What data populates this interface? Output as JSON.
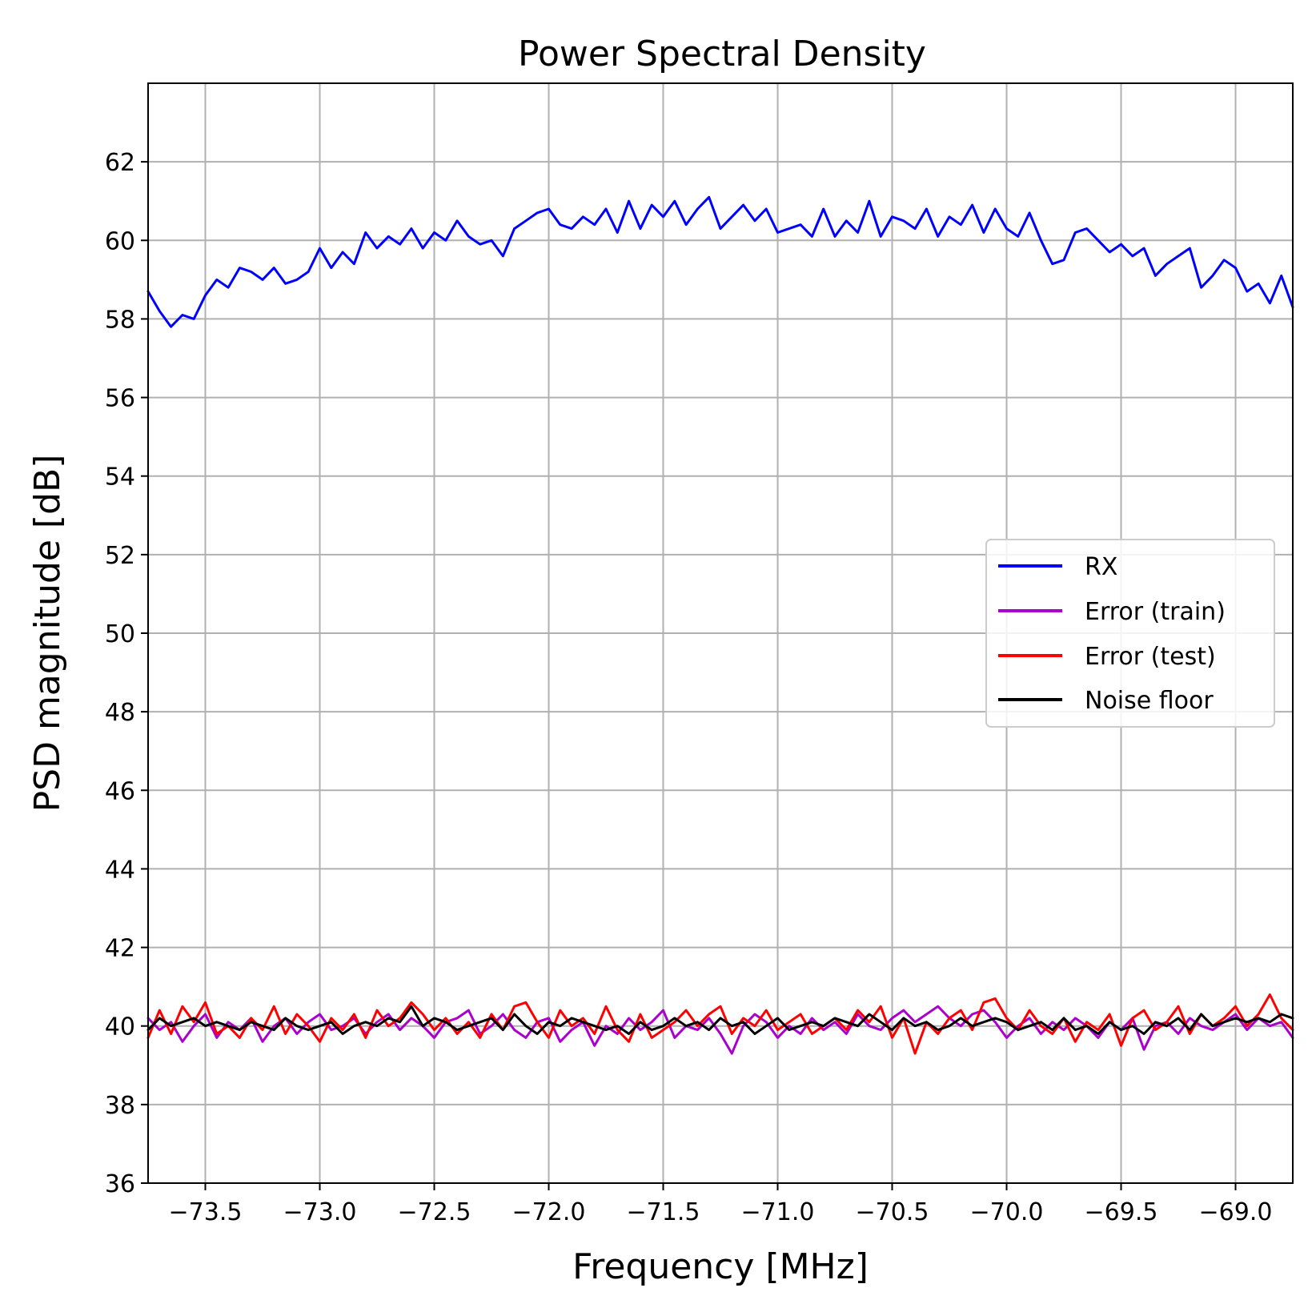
{
  "chart_data": {
    "type": "line",
    "title": "Power Spectral Density",
    "xlabel": "Frequency [MHz]",
    "ylabel": "PSD magnitude [dB]",
    "xlim": [
      -73.75,
      -68.75
    ],
    "ylim": [
      36,
      64
    ],
    "xticks": [
      -73.5,
      -73.0,
      -72.5,
      -72.0,
      -71.5,
      -71.0,
      -70.5,
      -70.0,
      -69.5,
      -69.0
    ],
    "xtick_labels": [
      "−73.5",
      "−73.0",
      "−72.5",
      "−72.0",
      "−71.5",
      "−71.0",
      "−70.5",
      "−70.0",
      "−69.5",
      "−69.0"
    ],
    "yticks": [
      36,
      38,
      40,
      42,
      44,
      46,
      48,
      50,
      52,
      54,
      56,
      58,
      60,
      62
    ],
    "ytick_labels": [
      "36",
      "38",
      "40",
      "42",
      "44",
      "46",
      "48",
      "50",
      "52",
      "54",
      "56",
      "58",
      "60",
      "62"
    ],
    "grid": true,
    "legend_position": "center-right",
    "series": [
      {
        "name": "RX",
        "color": "#0000ff",
        "x": [
          -73.75,
          -73.7,
          -73.65,
          -73.6,
          -73.55,
          -73.5,
          -73.45,
          -73.4,
          -73.35,
          -73.3,
          -73.25,
          -73.2,
          -73.15,
          -73.1,
          -73.05,
          -73.0,
          -72.95,
          -72.9,
          -72.85,
          -72.8,
          -72.75,
          -72.7,
          -72.65,
          -72.6,
          -72.55,
          -72.5,
          -72.45,
          -72.4,
          -72.35,
          -72.3,
          -72.25,
          -72.2,
          -72.15,
          -72.1,
          -72.05,
          -72.0,
          -71.95,
          -71.9,
          -71.85,
          -71.8,
          -71.75,
          -71.7,
          -71.65,
          -71.6,
          -71.55,
          -71.5,
          -71.45,
          -71.4,
          -71.35,
          -71.3,
          -71.25,
          -71.2,
          -71.15,
          -71.1,
          -71.05,
          -71.0,
          -70.95,
          -70.9,
          -70.85,
          -70.8,
          -70.75,
          -70.7,
          -70.65,
          -70.6,
          -70.55,
          -70.5,
          -70.45,
          -70.4,
          -70.35,
          -70.3,
          -70.25,
          -70.2,
          -70.15,
          -70.1,
          -70.05,
          -70.0,
          -69.95,
          -69.9,
          -69.85,
          -69.8,
          -69.75,
          -69.7,
          -69.65,
          -69.6,
          -69.55,
          -69.5,
          -69.45,
          -69.4,
          -69.35,
          -69.3,
          -69.25,
          -69.2,
          -69.15,
          -69.1,
          -69.05,
          -69.0,
          -68.95,
          -68.9,
          -68.85,
          -68.8,
          -68.75
        ],
        "y": [
          58.7,
          58.2,
          57.8,
          58.1,
          58.0,
          58.6,
          59.0,
          58.8,
          59.3,
          59.2,
          59.0,
          59.3,
          58.9,
          59.0,
          59.2,
          59.8,
          59.3,
          59.7,
          59.4,
          60.2,
          59.8,
          60.1,
          59.9,
          60.3,
          59.8,
          60.2,
          60.0,
          60.5,
          60.1,
          59.9,
          60.0,
          59.6,
          60.3,
          60.5,
          60.7,
          60.8,
          60.4,
          60.3,
          60.6,
          60.4,
          60.8,
          60.2,
          61.0,
          60.3,
          60.9,
          60.6,
          61.0,
          60.4,
          60.8,
          61.1,
          60.3,
          60.6,
          60.9,
          60.5,
          60.8,
          60.2,
          60.3,
          60.4,
          60.1,
          60.8,
          60.1,
          60.5,
          60.2,
          61.0,
          60.1,
          60.6,
          60.5,
          60.3,
          60.8,
          60.1,
          60.6,
          60.4,
          60.9,
          60.2,
          60.8,
          60.3,
          60.1,
          60.7,
          60.0,
          59.4,
          59.5,
          60.2,
          60.3,
          60.0,
          59.7,
          59.9,
          59.6,
          59.8,
          59.1,
          59.4,
          59.6,
          59.8,
          58.8,
          59.1,
          59.5,
          59.3,
          58.7,
          58.9,
          58.4,
          59.1,
          58.3
        ]
      },
      {
        "name": "Error (train)",
        "color": "#aa00cc",
        "x": [
          -73.75,
          -73.7,
          -73.65,
          -73.6,
          -73.55,
          -73.5,
          -73.45,
          -73.4,
          -73.35,
          -73.3,
          -73.25,
          -73.2,
          -73.15,
          -73.1,
          -73.05,
          -73.0,
          -72.95,
          -72.9,
          -72.85,
          -72.8,
          -72.75,
          -72.7,
          -72.65,
          -72.6,
          -72.55,
          -72.5,
          -72.45,
          -72.4,
          -72.35,
          -72.3,
          -72.25,
          -72.2,
          -72.15,
          -72.1,
          -72.05,
          -72.0,
          -71.95,
          -71.9,
          -71.85,
          -71.8,
          -71.75,
          -71.7,
          -71.65,
          -71.6,
          -71.55,
          -71.5,
          -71.45,
          -71.4,
          -71.35,
          -71.3,
          -71.25,
          -71.2,
          -71.15,
          -71.1,
          -71.05,
          -71.0,
          -70.95,
          -70.9,
          -70.85,
          -70.8,
          -70.75,
          -70.7,
          -70.65,
          -70.6,
          -70.55,
          -70.5,
          -70.45,
          -70.4,
          -70.35,
          -70.3,
          -70.25,
          -70.2,
          -70.15,
          -70.1,
          -70.05,
          -70.0,
          -69.95,
          -69.9,
          -69.85,
          -69.8,
          -69.75,
          -69.7,
          -69.65,
          -69.6,
          -69.55,
          -69.5,
          -69.45,
          -69.4,
          -69.35,
          -69.3,
          -69.25,
          -69.2,
          -69.15,
          -69.1,
          -69.05,
          -69.0,
          -68.95,
          -68.9,
          -68.85,
          -68.8,
          -68.75
        ],
        "y": [
          40.2,
          39.9,
          40.1,
          39.6,
          40.0,
          40.3,
          39.7,
          40.1,
          39.9,
          40.2,
          39.6,
          40.0,
          40.2,
          39.8,
          40.1,
          40.3,
          39.9,
          40.0,
          40.2,
          39.8,
          40.1,
          40.3,
          39.9,
          40.2,
          40.0,
          39.7,
          40.1,
          40.2,
          40.4,
          39.8,
          40.0,
          40.3,
          39.9,
          39.7,
          40.1,
          40.2,
          39.6,
          39.9,
          40.1,
          39.5,
          40.0,
          39.8,
          40.2,
          39.9,
          40.1,
          40.4,
          39.7,
          40.0,
          39.9,
          40.2,
          39.8,
          39.3,
          40.0,
          40.3,
          40.1,
          39.7,
          40.0,
          39.8,
          40.2,
          39.9,
          40.1,
          39.8,
          40.3,
          40.0,
          39.9,
          40.2,
          40.4,
          40.1,
          40.3,
          40.5,
          40.2,
          40.0,
          40.3,
          40.4,
          40.1,
          39.7,
          40.0,
          40.2,
          39.8,
          40.1,
          39.9,
          40.2,
          40.0,
          39.7,
          40.1,
          39.9,
          40.2,
          39.4,
          40.0,
          40.1,
          39.8,
          40.2,
          40.0,
          39.9,
          40.1,
          40.3,
          39.9,
          40.2,
          40.0,
          40.1,
          39.7
        ]
      },
      {
        "name": "Error (test)",
        "color": "#ff0000",
        "x": [
          -73.75,
          -73.7,
          -73.65,
          -73.6,
          -73.55,
          -73.5,
          -73.45,
          -73.4,
          -73.35,
          -73.3,
          -73.25,
          -73.2,
          -73.15,
          -73.1,
          -73.05,
          -73.0,
          -72.95,
          -72.9,
          -72.85,
          -72.8,
          -72.75,
          -72.7,
          -72.65,
          -72.6,
          -72.55,
          -72.5,
          -72.45,
          -72.4,
          -72.35,
          -72.3,
          -72.25,
          -72.2,
          -72.15,
          -72.1,
          -72.05,
          -72.0,
          -71.95,
          -71.9,
          -71.85,
          -71.8,
          -71.75,
          -71.7,
          -71.65,
          -71.6,
          -71.55,
          -71.5,
          -71.45,
          -71.4,
          -71.35,
          -71.3,
          -71.25,
          -71.2,
          -71.15,
          -71.1,
          -71.05,
          -71.0,
          -70.95,
          -70.9,
          -70.85,
          -70.8,
          -70.75,
          -70.7,
          -70.65,
          -70.6,
          -70.55,
          -70.5,
          -70.45,
          -70.4,
          -70.35,
          -70.3,
          -70.25,
          -70.2,
          -70.15,
          -70.1,
          -70.05,
          -70.0,
          -69.95,
          -69.9,
          -69.85,
          -69.8,
          -69.75,
          -69.7,
          -69.65,
          -69.6,
          -69.55,
          -69.5,
          -69.45,
          -69.4,
          -69.35,
          -69.3,
          -69.25,
          -69.2,
          -69.15,
          -69.1,
          -69.05,
          -69.0,
          -68.95,
          -68.9,
          -68.85,
          -68.8,
          -68.75
        ],
        "y": [
          39.7,
          40.4,
          39.8,
          40.5,
          40.1,
          40.6,
          39.8,
          40.0,
          39.7,
          40.2,
          39.9,
          40.5,
          39.8,
          40.3,
          40.0,
          39.6,
          40.2,
          39.9,
          40.3,
          39.7,
          40.4,
          40.0,
          40.2,
          40.6,
          40.3,
          39.9,
          40.2,
          39.8,
          40.1,
          39.7,
          40.3,
          39.9,
          40.5,
          40.6,
          40.1,
          39.7,
          40.4,
          40.0,
          40.2,
          39.8,
          40.5,
          39.9,
          39.6,
          40.3,
          39.7,
          39.9,
          40.1,
          40.4,
          40.0,
          40.3,
          40.5,
          39.8,
          40.2,
          40.0,
          40.4,
          39.9,
          40.1,
          40.3,
          39.8,
          40.0,
          40.2,
          39.9,
          40.4,
          40.1,
          40.5,
          39.7,
          40.2,
          39.3,
          40.1,
          39.8,
          40.2,
          40.4,
          39.9,
          40.6,
          40.7,
          40.2,
          39.9,
          40.4,
          40.0,
          39.8,
          40.2,
          39.6,
          40.1,
          39.9,
          40.3,
          39.5,
          40.2,
          40.4,
          39.9,
          40.1,
          40.5,
          39.8,
          40.3,
          40.0,
          40.2,
          40.5,
          40.0,
          40.3,
          40.8,
          40.2,
          39.9
        ]
      },
      {
        "name": "Noise floor",
        "color": "#000000",
        "x": [
          -73.75,
          -73.7,
          -73.65,
          -73.6,
          -73.55,
          -73.5,
          -73.45,
          -73.4,
          -73.35,
          -73.3,
          -73.25,
          -73.2,
          -73.15,
          -73.1,
          -73.05,
          -73.0,
          -72.95,
          -72.9,
          -72.85,
          -72.8,
          -72.75,
          -72.7,
          -72.65,
          -72.6,
          -72.55,
          -72.5,
          -72.45,
          -72.4,
          -72.35,
          -72.3,
          -72.25,
          -72.2,
          -72.15,
          -72.1,
          -72.05,
          -72.0,
          -71.95,
          -71.9,
          -71.85,
          -71.8,
          -71.75,
          -71.7,
          -71.65,
          -71.6,
          -71.55,
          -71.5,
          -71.45,
          -71.4,
          -71.35,
          -71.3,
          -71.25,
          -71.2,
          -71.15,
          -71.1,
          -71.05,
          -71.0,
          -70.95,
          -70.9,
          -70.85,
          -70.8,
          -70.75,
          -70.7,
          -70.65,
          -70.6,
          -70.55,
          -70.5,
          -70.45,
          -70.4,
          -70.35,
          -70.3,
          -70.25,
          -70.2,
          -70.15,
          -70.1,
          -70.05,
          -70.0,
          -69.95,
          -69.9,
          -69.85,
          -69.8,
          -69.75,
          -69.7,
          -69.65,
          -69.6,
          -69.55,
          -69.5,
          -69.45,
          -69.4,
          -69.35,
          -69.3,
          -69.25,
          -69.2,
          -69.15,
          -69.1,
          -69.05,
          -69.0,
          -68.95,
          -68.9,
          -68.85,
          -68.8,
          -68.75
        ],
        "y": [
          39.9,
          40.2,
          40.0,
          40.1,
          40.2,
          40.0,
          40.1,
          40.0,
          39.9,
          40.1,
          40.0,
          39.9,
          40.2,
          40.0,
          39.9,
          40.0,
          40.1,
          39.8,
          40.0,
          40.1,
          40.0,
          40.2,
          40.1,
          40.5,
          40.0,
          40.2,
          40.1,
          39.9,
          40.0,
          40.1,
          40.2,
          39.9,
          40.3,
          40.0,
          39.8,
          40.1,
          40.0,
          40.2,
          40.1,
          40.0,
          39.9,
          40.0,
          39.8,
          40.1,
          39.9,
          40.0,
          40.2,
          40.0,
          40.1,
          39.9,
          40.2,
          40.0,
          40.1,
          39.8,
          40.0,
          40.2,
          39.9,
          40.0,
          40.1,
          40.0,
          40.2,
          40.1,
          40.0,
          40.3,
          40.1,
          39.9,
          40.2,
          40.0,
          40.1,
          39.9,
          40.0,
          40.2,
          40.0,
          40.1,
          40.2,
          40.1,
          39.9,
          40.0,
          40.1,
          39.9,
          40.2,
          39.9,
          40.0,
          39.8,
          40.1,
          39.9,
          40.0,
          39.8,
          40.1,
          40.0,
          40.2,
          39.9,
          40.3,
          40.0,
          40.1,
          40.2,
          40.1,
          40.2,
          40.1,
          40.3,
          40.2
        ]
      }
    ]
  }
}
